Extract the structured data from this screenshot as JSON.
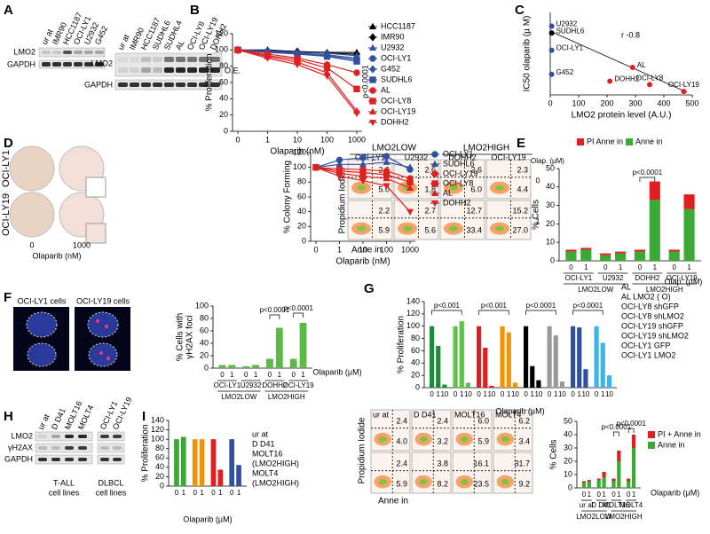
{
  "panels": {
    "letters": [
      "A",
      "B",
      "C",
      "D",
      "E",
      "F",
      "G",
      "H",
      "I"
    ],
    "A": {
      "left_lanes": [
        {
          "label": "ur at",
          "color": "#000"
        },
        {
          "label": "IMR90",
          "color": "#000"
        },
        {
          "label": "HCC1187",
          "color": "#000"
        },
        {
          "label": "OCI-LY1",
          "color": "#3050a0"
        },
        {
          "label": "U2932",
          "color": "#3050a0"
        },
        {
          "label": "G452",
          "color": "#3050a0"
        }
      ],
      "right_lanes": [
        {
          "label": "ur at",
          "color": "#000"
        },
        {
          "label": "IMR90",
          "color": "#000"
        },
        {
          "label": "HCC1187",
          "color": "#000"
        },
        {
          "label": "SUDHL6",
          "color": "#000"
        },
        {
          "label": "SUDHL4",
          "color": "#e02020"
        },
        {
          "label": "AL",
          "color": "#e02020"
        },
        {
          "label": "OCI-LY8",
          "color": "#e02020"
        },
        {
          "label": "OCI-LY19",
          "color": "#e02020"
        },
        {
          "label": "DOHH2",
          "color": "#e02020"
        }
      ],
      "rows_left": [
        "LMO2",
        "GAPDH"
      ],
      "rows_right": [
        "LMO2",
        "GAPDH"
      ],
      "oe": "O.E."
    },
    "D": {
      "cells": [
        {
          "label": "OCI-LY1",
          "color": "#3050a0"
        },
        {
          "label": "OCI-LY19",
          "color": "#e02020"
        }
      ],
      "doses": [
        "0",
        "1000"
      ],
      "xlabel": "Olaparib (nM)"
    },
    "E": {
      "headers": [
        "LMO2LOW",
        "LMO2HIGH"
      ],
      "cells": [
        "OCI-LY1",
        "U2932",
        "DOHH2",
        "OCI-LY19"
      ],
      "dose_label": "Olap. (µM)",
      "doses": [
        "0",
        "1"
      ],
      "plots": [
        [
          [
            "2.6",
            "5.0"
          ],
          [
            "2.6",
            "1.8"
          ],
          [
            "2.6",
            "6.0"
          ],
          [
            "2.3",
            "4.4"
          ]
        ],
        [
          [
            "2.2",
            "5.9"
          ],
          [
            "2.7",
            "5.6"
          ],
          [
            "12.7",
            "33.4"
          ],
          [
            "15.2",
            "27.0"
          ]
        ]
      ],
      "ylabel": "Propidium Iodide",
      "xlabel": "Anne in"
    },
    "F": {
      "cells": [
        {
          "label": "OCI-LY1 cells",
          "color": "#3050a0"
        },
        {
          "label": "OCI-LY19 cells",
          "color": "#e02020"
        }
      ]
    },
    "H": {
      "lanes": [
        {
          "label": "ur at",
          "color": "#3aaa35"
        },
        {
          "label": "D D41",
          "color": "#f39200"
        },
        {
          "label": "MOLT16",
          "color": "#e02020"
        },
        {
          "label": "MOLT4",
          "color": "#3050a0"
        },
        {
          "label": "OCI-LY1",
          "color": "#000"
        },
        {
          "label": "OCI-LY19",
          "color": "#000"
        }
      ],
      "rows": [
        "LMO2",
        "γH2AX",
        "GAPDH"
      ],
      "groups": [
        [
          "T-ALL",
          "cell lines"
        ],
        [
          "DLBCL",
          "cell lines"
        ]
      ]
    },
    "I": {
      "lanes": [
        {
          "label": "ur at",
          "color": "#3aaa35"
        },
        {
          "label": "D D41",
          "color": "#f39200"
        },
        {
          "label": "MOLT16",
          "color": "#e02020"
        },
        {
          "label": "MOLT4",
          "color": "#3050a0"
        }
      ],
      "plots": [
        [
          [
            "2.4",
            "4.0"
          ],
          [
            "2.4",
            "3.2"
          ],
          [
            "6.0",
            "5.9"
          ],
          [
            "6.2",
            "3.4"
          ]
        ],
        [
          [
            "2.4",
            "5.9"
          ],
          [
            "3.8",
            "8.2"
          ],
          [
            "16.1",
            "23.5"
          ],
          [
            "31.7",
            "9.2"
          ]
        ]
      ],
      "ylabel": "Propidium Iodide",
      "xlabel": "Anne in"
    }
  },
  "chart_data": [
    {
      "type": "line",
      "ylabel": "% Proliferation",
      "xlabel": "Olaparib (nM)",
      "categories": [
        "0",
        "1",
        "10",
        "100",
        "1000"
      ],
      "ylim": [
        0,
        120
      ],
      "yticks": [
        0,
        20,
        40,
        60,
        80,
        100,
        120
      ],
      "annotations": [
        "p<0.0001"
      ],
      "series": [
        {
          "name": "HCC1187",
          "color": "#000",
          "marker": "triangle",
          "values": [
            100,
            100,
            98,
            97,
            97
          ]
        },
        {
          "name": "IMR90",
          "color": "#000",
          "marker": "diamond",
          "values": [
            100,
            99,
            98,
            96,
            95
          ]
        },
        {
          "name": "U2932",
          "color": "#3050a0",
          "marker": "triangle",
          "values": [
            100,
            99,
            97,
            96,
            93
          ]
        },
        {
          "name": "OCI-LY1",
          "color": "#3050a0",
          "marker": "circle",
          "values": [
            100,
            98,
            96,
            94,
            90
          ]
        },
        {
          "name": "G452",
          "color": "#3050a0",
          "marker": "diamond",
          "values": [
            100,
            98,
            95,
            93,
            88
          ]
        },
        {
          "name": "SUDHL6",
          "color": "#3050a0",
          "marker": "square",
          "values": [
            100,
            97,
            95,
            92,
            86
          ]
        },
        {
          "name": "AL",
          "color": "#e02020",
          "marker": "circle",
          "values": [
            100,
            95,
            90,
            82,
            72
          ]
        },
        {
          "name": "OCI-LY8",
          "color": "#e02020",
          "marker": "square",
          "values": [
            100,
            93,
            88,
            78,
            52
          ]
        },
        {
          "name": "OCI-LY19",
          "color": "#e02020",
          "marker": "triangle",
          "values": [
            100,
            92,
            85,
            72,
            25
          ]
        },
        {
          "name": "DOHH2",
          "color": "#e02020",
          "marker": "down",
          "values": [
            100,
            90,
            82,
            68,
            22
          ]
        }
      ]
    },
    {
      "type": "scatter",
      "ylabel": "IC50 olaparib (µ M)",
      "xlabel": "LMO2 protein level (A.U.)",
      "categories": [
        "U2932",
        "SUDHL6",
        "OCI-LY1",
        "G452",
        "AL",
        "DOHH2",
        "OCI-LY8",
        "OCI-LY19"
      ],
      "x": [
        5,
        5,
        5,
        5,
        290,
        210,
        350,
        470
      ],
      "values": [
        10,
        9,
        6.5,
        3,
        4,
        2,
        1.5,
        0.5
      ],
      "colors": [
        "#3050a0",
        "#000",
        "#3050a0",
        "#3050a0",
        "#e02020",
        "#e02020",
        "#e02020",
        "#e02020"
      ],
      "xlim": [
        0,
        500
      ],
      "xticks": [
        0,
        100,
        200,
        300,
        400,
        500
      ],
      "ylim": [
        0,
        12
      ],
      "annotations": [
        "r -0.8"
      ]
    },
    {
      "type": "line",
      "ylabel": "% Colony Forming",
      "xlabel": "Olaparib (nM)",
      "categories": [
        "0",
        "1",
        "10",
        "100",
        "1000"
      ],
      "ylim": [
        0,
        120
      ],
      "yticks": [
        0,
        20,
        40,
        60,
        80,
        100,
        120
      ],
      "series": [
        {
          "name": "OCI-LY1",
          "color": "#3050a0",
          "marker": "circle",
          "values": [
            100,
            110,
            113,
            115,
            97
          ]
        },
        {
          "name": "SUDHL6",
          "color": "#3050a0",
          "marker": "triangle",
          "values": [
            100,
            104,
            104,
            107,
            100
          ]
        },
        {
          "name": "OCI-LY19",
          "color": "#e02020",
          "marker": "circle",
          "values": [
            100,
            98,
            97,
            95,
            85
          ]
        },
        {
          "name": "OCI-LY8",
          "color": "#e02020",
          "marker": "square",
          "values": [
            100,
            95,
            93,
            90,
            80
          ]
        },
        {
          "name": "AL",
          "color": "#e02020",
          "marker": "triangle",
          "values": [
            100,
            92,
            88,
            85,
            72
          ]
        },
        {
          "name": "DOHH2",
          "color": "#e02020",
          "marker": "down",
          "values": [
            100,
            88,
            82,
            75,
            40
          ]
        }
      ]
    },
    {
      "type": "bar",
      "stacked": true,
      "ylabel": "% Cells",
      "xlabel": "Olap. (µM)",
      "categories": [
        "0",
        "1",
        "0",
        "1",
        "0",
        "1",
        "0",
        "1"
      ],
      "groups": [
        "OCI-LY1",
        "U2932",
        "DOHH2",
        "OCI-LY19"
      ],
      "supergroups": [
        "LMO2LOW",
        "LMO2HIGH"
      ],
      "ylim": [
        0,
        50
      ],
      "yticks": [
        0,
        10,
        20,
        30,
        40,
        50
      ],
      "annotations": [
        "p<0.0001"
      ],
      "series": [
        {
          "name": "Anne in",
          "color": "#3aaa35",
          "values": [
            5,
            6,
            3,
            4,
            5,
            33,
            5,
            28
          ]
        },
        {
          "name": "PI Anne in",
          "color": "#e02020",
          "values": [
            1,
            1,
            1,
            1,
            1,
            10,
            1,
            8
          ]
        }
      ]
    },
    {
      "type": "bar",
      "ylabel": [
        "% Cells with",
        "γH2AX foci"
      ],
      "xlabel": "Olaparib (µM)",
      "categories": [
        "0",
        "1",
        "0",
        "1",
        "0",
        "1",
        "0",
        "1"
      ],
      "groups": [
        "OCI-LY1",
        "U2932",
        "DOHH2",
        "OCI-LY19"
      ],
      "supergroups": [
        "LMO2LOW",
        "LMO2HIGH"
      ],
      "ylim": [
        0,
        100
      ],
      "yticks": [
        0,
        20,
        40,
        60,
        80,
        100
      ],
      "annotations": [
        "p<0.0001",
        "p<0.0001"
      ],
      "series": [
        {
          "name": "γH2AX",
          "color": "#5cb947",
          "values": [
            5,
            5,
            3,
            5,
            15,
            65,
            15,
            73
          ]
        }
      ]
    },
    {
      "type": "bar",
      "ylabel": "% Proliferation",
      "xlabel": "Olaparib (µM)",
      "categories": [
        "0",
        "1",
        "10",
        "0",
        "1",
        "10",
        "0",
        "1",
        "10",
        "0",
        "1",
        "10",
        "0",
        "1",
        "10",
        "0",
        "1",
        "10",
        "0",
        "1",
        "10",
        "0",
        "1",
        "10"
      ],
      "ylim": [
        0,
        140
      ],
      "yticks": [
        0,
        20,
        40,
        60,
        80,
        100,
        120,
        140
      ],
      "annotations": [
        "p<0.001",
        "p<0.001",
        "p<0.0001",
        "p<0.0001"
      ],
      "legend": [
        {
          "name": "AL",
          "color": "#1e8a3c"
        },
        {
          "name": "AL LMO2 ( O)",
          "color": "#5cc24a"
        },
        {
          "name": "OCI-LY8 shGFP",
          "color": "#e02020"
        },
        {
          "name": "OCI-LY8 shLMO2",
          "color": "#f39200"
        },
        {
          "name": "OCI-LY19 shGFP",
          "color": "#000"
        },
        {
          "name": "OCI-LY19 shLMO2",
          "color": "#999"
        },
        {
          "name": "OCI-LY1 GFP",
          "color": "#2f4fa0"
        },
        {
          "name": "OCI-LY1 LMO2",
          "color": "#3bb4e8"
        }
      ],
      "series": [
        {
          "name": "Proliferation",
          "colors": [
            "#1e8a3c",
            "#1e8a3c",
            "#1e8a3c",
            "#5cc24a",
            "#5cc24a",
            "#5cc24a",
            "#e02020",
            "#e02020",
            "#e02020",
            "#f39200",
            "#f39200",
            "#f39200",
            "#000",
            "#000",
            "#000",
            "#999",
            "#999",
            "#999",
            "#2f4fa0",
            "#2f4fa0",
            "#2f4fa0",
            "#3bb4e8",
            "#3bb4e8",
            "#3bb4e8"
          ],
          "values": [
            100,
            68,
            5,
            100,
            108,
            8,
            100,
            65,
            3,
            100,
            90,
            8,
            100,
            35,
            12,
            100,
            85,
            10,
            100,
            98,
            30,
            100,
            73,
            20
          ]
        }
      ]
    },
    {
      "type": "bar",
      "ylabel": "% Proliferation",
      "xlabel": "Olaparib (µM)",
      "categories": [
        "0",
        "1",
        "0",
        "1",
        "0",
        "1",
        "0",
        "1"
      ],
      "ylim": [
        0,
        140
      ],
      "yticks": [
        0,
        20,
        40,
        60,
        80,
        100,
        120,
        140
      ],
      "legend": [
        {
          "name": "ur at",
          "color": "#3aaa35"
        },
        {
          "name": "D D41",
          "color": "#f39200"
        },
        {
          "name": "MOLT16",
          "color": "#e02020"
        },
        {
          "name": "(LMO2HIGH)",
          "color": "#000"
        },
        {
          "name": "MOLT4",
          "color": "#3050a0"
        },
        {
          "name": "(LMO2HIGH)",
          "color": "#000"
        }
      ],
      "series": [
        {
          "name": "Proliferation",
          "colors": [
            "#3aaa35",
            "#3aaa35",
            "#f39200",
            "#f39200",
            "#e02020",
            "#e02020",
            "#3050a0",
            "#3050a0"
          ],
          "values": [
            100,
            105,
            100,
            100,
            100,
            35,
            100,
            45
          ]
        }
      ]
    },
    {
      "type": "bar",
      "stacked": true,
      "ylabel": "% Cells",
      "xlabel": "Olaparib (µM)",
      "categories": [
        "0",
        "1",
        "0",
        "1",
        "0",
        "1",
        "0",
        "1"
      ],
      "groups": [
        "ur at",
        "D D41",
        "MOLT16",
        "MOLT4"
      ],
      "supergroups": [
        "LMO2LOW",
        "LMO2HIGH"
      ],
      "ylim": [
        0,
        50
      ],
      "yticks": [
        0,
        10,
        20,
        30,
        40,
        50
      ],
      "annotations": [
        "p<0.0001",
        "p<0.0001"
      ],
      "series": [
        {
          "name": "Anne in",
          "color": "#3aaa35",
          "values": [
            4,
            5,
            6,
            8,
            5,
            20,
            5,
            30
          ]
        },
        {
          "name": "PI + Anne in",
          "color": "#e02020",
          "values": [
            1,
            1,
            1,
            4,
            2,
            8,
            2,
            10
          ]
        }
      ]
    }
  ]
}
